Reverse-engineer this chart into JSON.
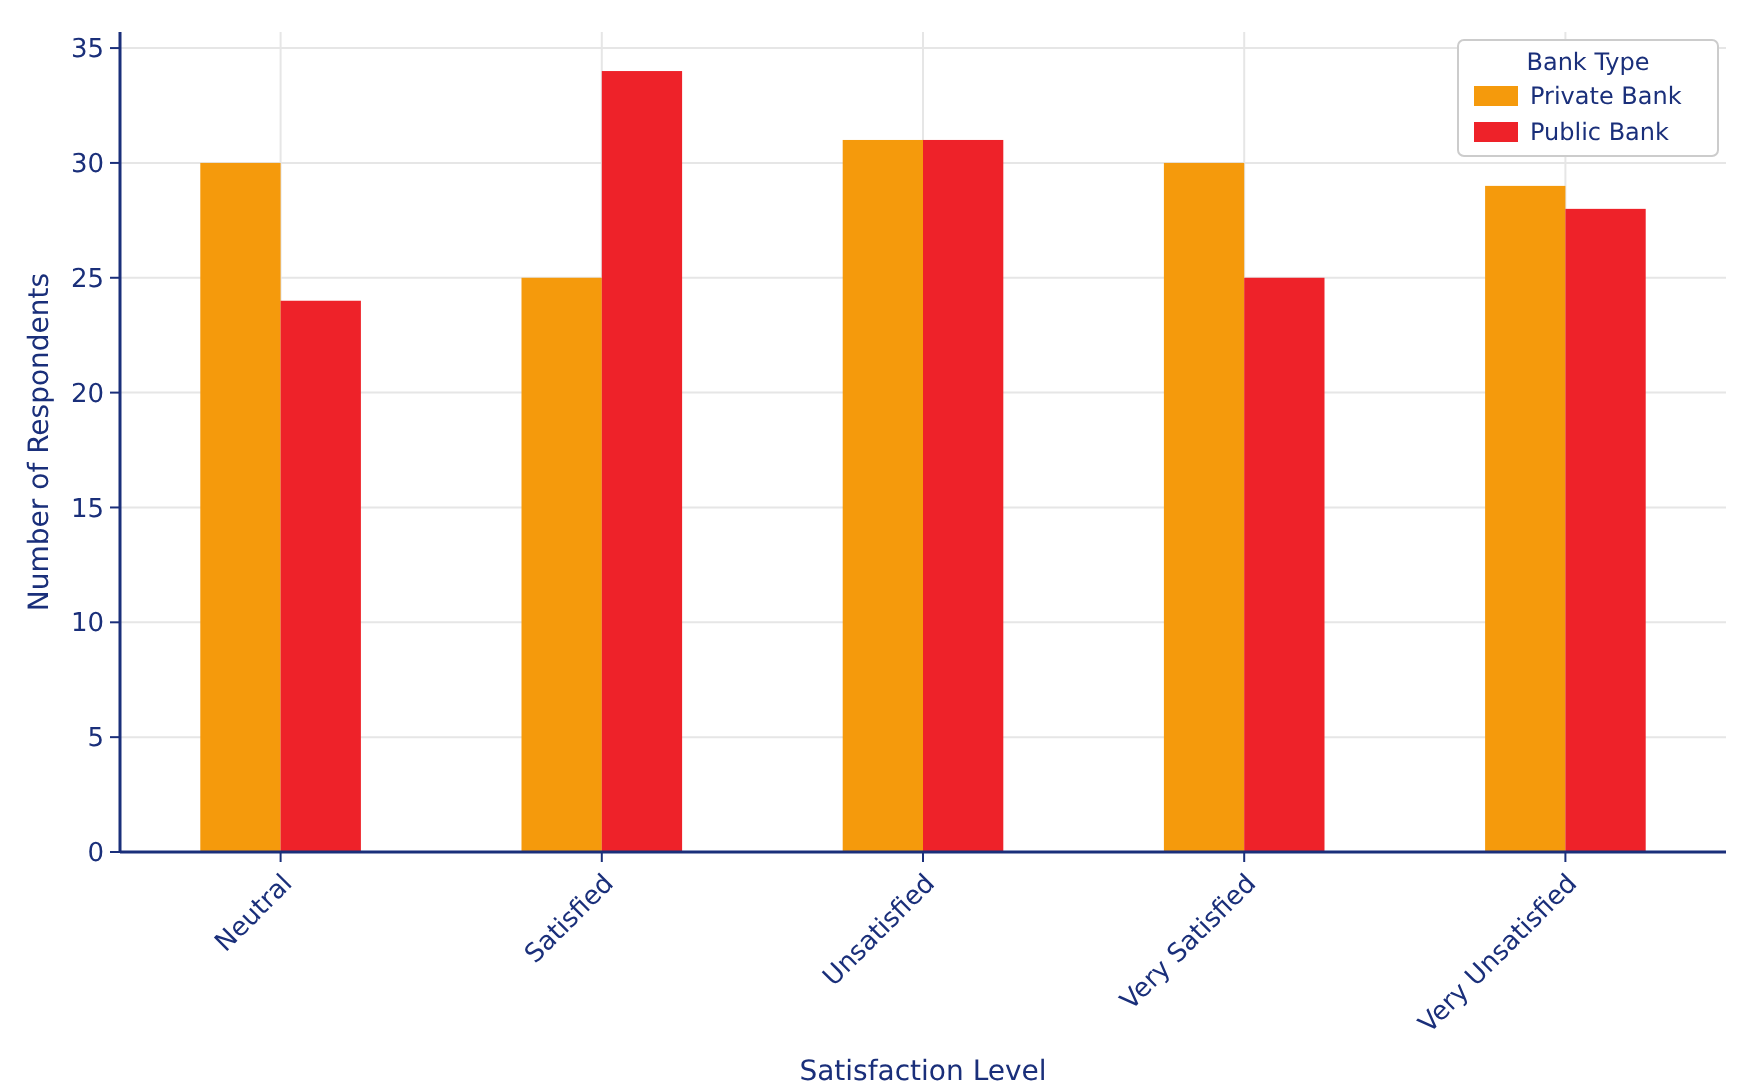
{
  "chart_data": {
    "type": "bar",
    "xlabel": "Satisfaction Level",
    "ylabel": "Number of Respondents",
    "legend_title": "Bank Type",
    "categories": [
      "Neutral",
      "Satisfied",
      "Unsatisfied",
      "Very Satisfied",
      "Very Unsatisfied"
    ],
    "series": [
      {
        "name": "Private Bank",
        "color": "#f59a0c",
        "values": [
          30,
          25,
          31,
          30,
          29
        ]
      },
      {
        "name": "Public Bank",
        "color": "#ee2229",
        "values": [
          24,
          34,
          31,
          25,
          28
        ]
      }
    ],
    "ylim": [
      0,
      35.7
    ],
    "yticks": [
      0,
      5,
      10,
      15,
      20,
      25,
      30,
      35
    ],
    "grid": true,
    "legend": "top right"
  }
}
